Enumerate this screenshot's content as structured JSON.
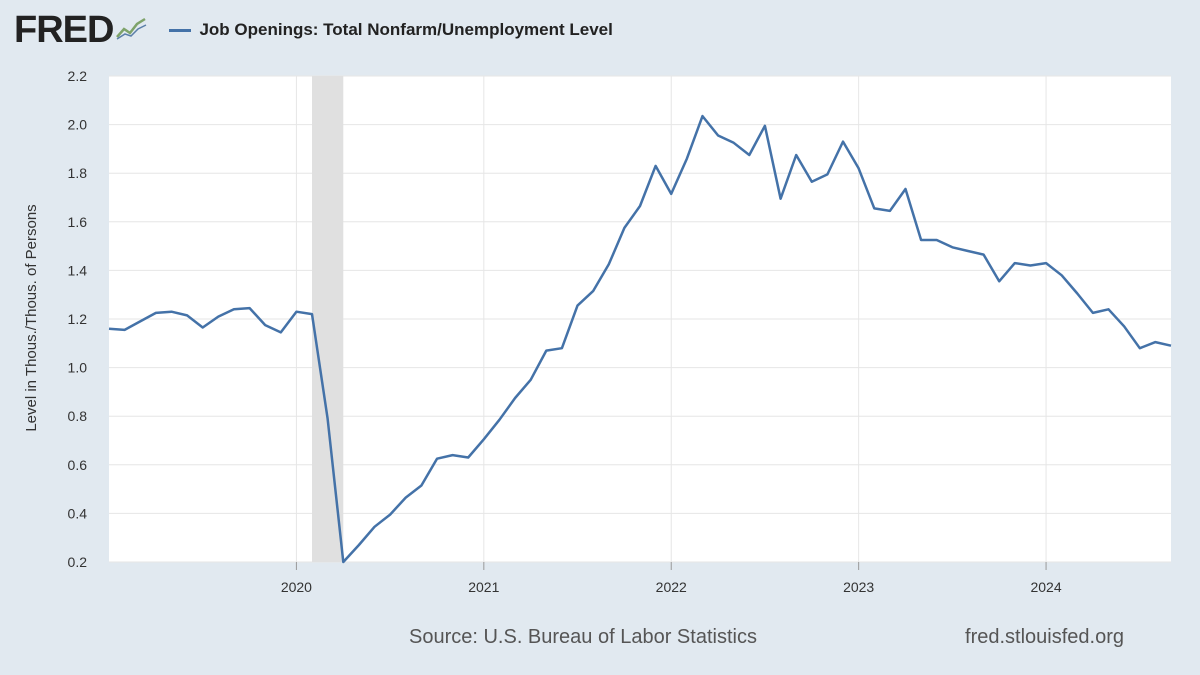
{
  "header": {
    "logo_text": "FRED",
    "logo_icon": "fred-chart-icon",
    "series_title": "Job Openings: Total Nonfarm/Unemployment Level"
  },
  "footer": {
    "source": "Source: U.S. Bureau of Labor Statistics",
    "site": "fred.stlouisfed.org"
  },
  "colors": {
    "background": "#e1e9f0",
    "plot_background": "#ffffff",
    "line": "#4472a8",
    "recession": "#e0e0e0",
    "grid": "#e6e6e6"
  },
  "chart_data": {
    "type": "line",
    "title": "Job Openings: Total Nonfarm/Unemployment Level",
    "ylabel": "Level in Thous./Thous. of Persons",
    "xlabel": "",
    "ylim": [
      0.2,
      2.2
    ],
    "yticks": [
      "0.2",
      "0.4",
      "0.6",
      "0.8",
      "1.0",
      "1.2",
      "1.4",
      "1.6",
      "1.8",
      "2.0",
      "2.2"
    ],
    "xlim": [
      "2019-01",
      "2024-09"
    ],
    "xticks": [
      "2020",
      "2021",
      "2022",
      "2023",
      "2024"
    ],
    "grid": true,
    "recession_shading": [
      [
        "2020-02",
        "2020-04"
      ]
    ],
    "series": [
      {
        "x": [
          "2019-01",
          "2019-02",
          "2019-03",
          "2019-04",
          "2019-05",
          "2019-06",
          "2019-07",
          "2019-08",
          "2019-09",
          "2019-10",
          "2019-11",
          "2019-12",
          "2020-01",
          "2020-02",
          "2020-03",
          "2020-04",
          "2020-05",
          "2020-06",
          "2020-07",
          "2020-08",
          "2020-09",
          "2020-10",
          "2020-11",
          "2020-12",
          "2021-01",
          "2021-02",
          "2021-03",
          "2021-04",
          "2021-05",
          "2021-06",
          "2021-07",
          "2021-08",
          "2021-09",
          "2021-10",
          "2021-11",
          "2021-12",
          "2022-01",
          "2022-02",
          "2022-03",
          "2022-04",
          "2022-05",
          "2022-06",
          "2022-07",
          "2022-08",
          "2022-09",
          "2022-10",
          "2022-11",
          "2022-12",
          "2023-01",
          "2023-02",
          "2023-03",
          "2023-04",
          "2023-05",
          "2023-06",
          "2023-07",
          "2023-08",
          "2023-09",
          "2023-10",
          "2023-11",
          "2023-12",
          "2024-01",
          "2024-02",
          "2024-03",
          "2024-04",
          "2024-05",
          "2024-06",
          "2024-07",
          "2024-08",
          "2024-09"
        ],
        "values": [
          1.16,
          1.155,
          1.19,
          1.225,
          1.23,
          1.215,
          1.165,
          1.21,
          1.24,
          1.245,
          1.175,
          1.145,
          1.23,
          1.22,
          0.79,
          0.2,
          0.27,
          0.345,
          0.395,
          0.465,
          0.515,
          0.625,
          0.64,
          0.63,
          0.705,
          0.785,
          0.875,
          0.95,
          1.07,
          1.08,
          1.255,
          1.315,
          1.425,
          1.575,
          1.665,
          1.83,
          1.715,
          1.86,
          2.035,
          1.955,
          1.925,
          1.875,
          1.995,
          1.695,
          1.875,
          1.765,
          1.795,
          1.93,
          1.82,
          1.655,
          1.645,
          1.735,
          1.525,
          1.525,
          1.495,
          1.48,
          1.465,
          1.355,
          1.43,
          1.42,
          1.43,
          1.38,
          1.305,
          1.225,
          1.24,
          1.17,
          1.08,
          1.105,
          1.09
        ]
      }
    ]
  }
}
